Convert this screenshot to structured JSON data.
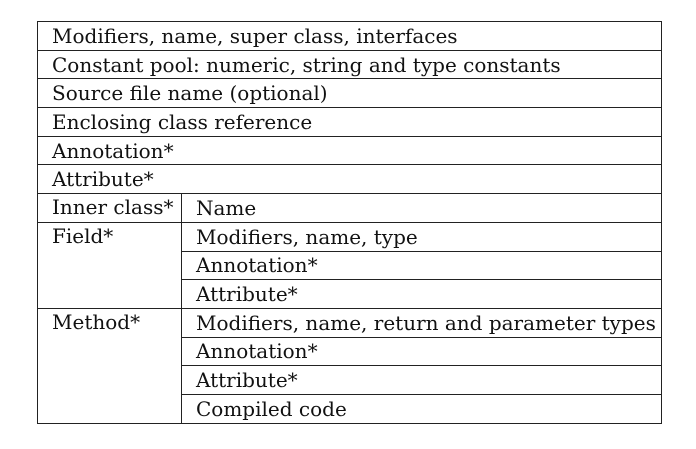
{
  "table": {
    "full_rows": [
      "Modifiers, name, super class, interfaces",
      "Constant pool: numeric, string and type constants",
      "Source file name (optional)",
      "Enclosing class reference",
      "Annotation*",
      "Attribute*"
    ],
    "groups": [
      {
        "label": "Inner class*",
        "items": [
          "Name"
        ]
      },
      {
        "label": "Field*",
        "items": [
          "Modifiers, name, type",
          "Annotation*",
          "Attribute*"
        ]
      },
      {
        "label": "Method*",
        "items": [
          "Modifiers, name, return and parameter types",
          "Annotation*",
          "Attribute*",
          "Compiled code"
        ]
      }
    ]
  }
}
